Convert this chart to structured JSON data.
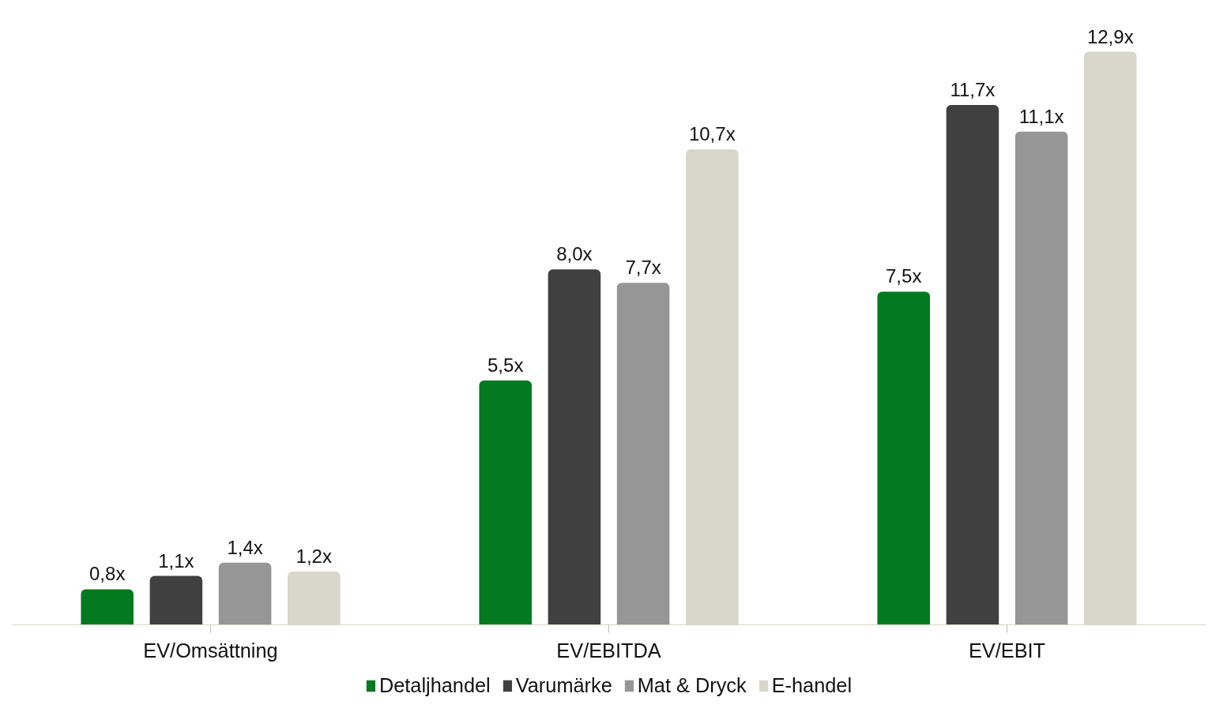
{
  "chart_data": {
    "type": "bar",
    "categories": [
      "EV/Omsättning",
      "EV/EBITDA",
      "EV/EBIT"
    ],
    "series": [
      {
        "name": "Detaljhandel",
        "color": "#037a1f",
        "values": [
          0.8,
          5.5,
          7.5
        ],
        "value_labels": [
          "0,8x",
          "5,5x",
          "7,5x"
        ]
      },
      {
        "name": "Varumärke",
        "color": "#404040",
        "values": [
          1.1,
          8.0,
          11.7
        ],
        "value_labels": [
          "1,1x",
          "8,0x",
          "11,7x"
        ]
      },
      {
        "name": "Mat & Dryck",
        "color": "#969696",
        "values": [
          1.4,
          7.7,
          11.1
        ],
        "value_labels": [
          "1,4x",
          "7,7x",
          "11,1x"
        ]
      },
      {
        "name": "E-handel",
        "color": "#d9d6ca",
        "values": [
          1.2,
          10.7,
          12.9
        ],
        "value_labels": [
          "1,2x",
          "10,7x",
          "12,9x"
        ]
      }
    ],
    "grid": false,
    "legend": "bottom"
  }
}
